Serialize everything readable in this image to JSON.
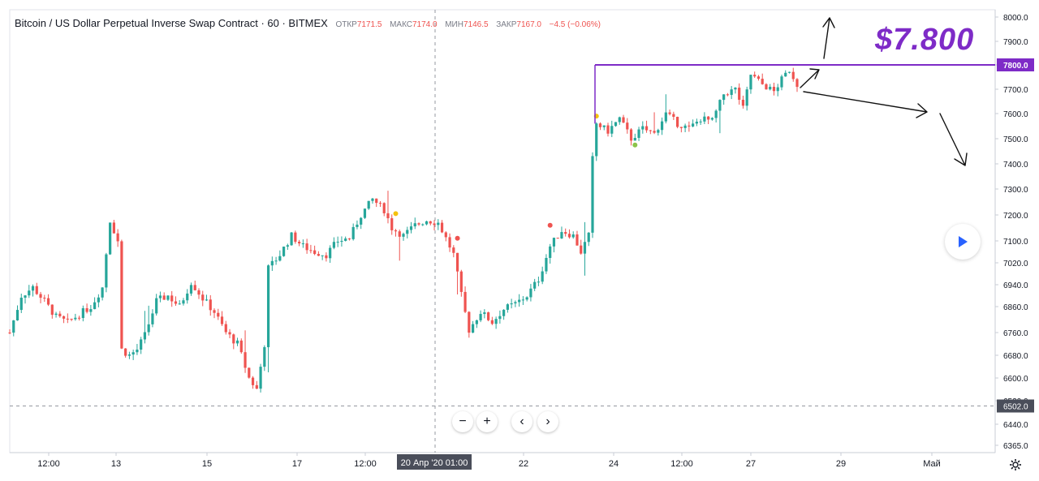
{
  "header": {
    "title": "Bitcoin / US Dollar Perpetual Inverse Swap Contract · 60 · BITMEX",
    "open_label": "ОТКР",
    "open_value": "7171.5",
    "high_label": "МАКС",
    "high_value": "7174.0",
    "low_label": "МИН",
    "low_value": "7146.5",
    "close_label": "ЗАКР",
    "close_value": "7167.0",
    "change": "−4.5 (−0.06%)"
  },
  "annotation": {
    "price_text": "$7.800",
    "color": "#7e2bc7"
  },
  "colors": {
    "up": "#26a69a",
    "down": "#ef5350",
    "resistance": "#7e2bc7",
    "axis_text": "#131722",
    "grid_line": "#d1d4dc"
  },
  "controls": {
    "zoom_out": "−",
    "zoom_in": "+",
    "scroll_left": "‹",
    "scroll_right": "›",
    "play_icon": "play-icon",
    "settings_icon": "gear-icon"
  },
  "chart_data": {
    "type": "candlestick",
    "title": "Bitcoin / US Dollar Perpetual Inverse Swap Contract · 60 · BITMEX",
    "interval": "60",
    "ylim": [
      6330,
      8020
    ],
    "y_ticks": [
      "8000.0",
      "7900.0",
      "7800.0",
      "7700.0",
      "7600.0",
      "7500.0",
      "7400.0",
      "7300.0",
      "7200.0",
      "7100.0",
      "7020.0",
      "6940.0",
      "6860.0",
      "6760.0",
      "6680.0",
      "6600.0",
      "6520.0",
      "6440.0",
      "6365.0"
    ],
    "x_ticks": [
      "12:00",
      "13",
      "15",
      "17",
      "12:00",
      "22",
      "24",
      "12:00",
      "27",
      "29",
      "Май"
    ],
    "crosshair": {
      "x_label": "20 Апр '20   01:00",
      "y_label": "6502.0",
      "y_value": 6502
    },
    "resistance_line": {
      "value": 7800,
      "label": "7800.0"
    },
    "price_path": [
      {
        "t": 0,
        "p": 6760
      },
      {
        "t": 3,
        "p": 6900
      },
      {
        "t": 6,
        "p": 6930
      },
      {
        "t": 9,
        "p": 6880
      },
      {
        "t": 12,
        "p": 6820
      },
      {
        "t": 15,
        "p": 6800
      },
      {
        "t": 18,
        "p": 6830
      },
      {
        "t": 21,
        "p": 6860
      },
      {
        "t": 24,
        "p": 6930
      },
      {
        "t": 26,
        "p": 7180
      },
      {
        "t": 27,
        "p": 7140
      },
      {
        "t": 28,
        "p": 7100
      },
      {
        "t": 29,
        "p": 6700
      },
      {
        "t": 31,
        "p": 6680
      },
      {
        "t": 33,
        "p": 6700
      },
      {
        "t": 35,
        "p": 6750
      },
      {
        "t": 38,
        "p": 6880
      },
      {
        "t": 41,
        "p": 6900
      },
      {
        "t": 44,
        "p": 6860
      },
      {
        "t": 47,
        "p": 6950
      },
      {
        "t": 50,
        "p": 6890
      },
      {
        "t": 53,
        "p": 6840
      },
      {
        "t": 56,
        "p": 6760
      },
      {
        "t": 59,
        "p": 6720
      },
      {
        "t": 62,
        "p": 6600
      },
      {
        "t": 64,
        "p": 6560
      },
      {
        "t": 66,
        "p": 6720
      },
      {
        "t": 67,
        "p": 7000
      },
      {
        "t": 70,
        "p": 7050
      },
      {
        "t": 73,
        "p": 7120
      },
      {
        "t": 76,
        "p": 7080
      },
      {
        "t": 79,
        "p": 7060
      },
      {
        "t": 82,
        "p": 7050
      },
      {
        "t": 85,
        "p": 7100
      },
      {
        "t": 88,
        "p": 7110
      },
      {
        "t": 91,
        "p": 7200
      },
      {
        "t": 94,
        "p": 7260
      },
      {
        "t": 97,
        "p": 7220
      },
      {
        "t": 99,
        "p": 7150
      },
      {
        "t": 102,
        "p": 7120
      },
      {
        "t": 105,
        "p": 7160
      },
      {
        "t": 108,
        "p": 7180
      },
      {
        "t": 111,
        "p": 7170
      },
      {
        "t": 113,
        "p": 7110
      },
      {
        "t": 115,
        "p": 7050
      },
      {
        "t": 117,
        "p": 6900
      },
      {
        "t": 119,
        "p": 6770
      },
      {
        "t": 122,
        "p": 6840
      },
      {
        "t": 125,
        "p": 6800
      },
      {
        "t": 128,
        "p": 6850
      },
      {
        "t": 131,
        "p": 6870
      },
      {
        "t": 134,
        "p": 6900
      },
      {
        "t": 137,
        "p": 6960
      },
      {
        "t": 140,
        "p": 7080
      },
      {
        "t": 143,
        "p": 7140
      },
      {
        "t": 146,
        "p": 7120
      },
      {
        "t": 148,
        "p": 7060
      },
      {
        "t": 150,
        "p": 7120
      },
      {
        "t": 151,
        "p": 7420
      },
      {
        "t": 152,
        "p": 7560
      },
      {
        "t": 155,
        "p": 7530
      },
      {
        "t": 158,
        "p": 7580
      },
      {
        "t": 161,
        "p": 7500
      },
      {
        "t": 164,
        "p": 7540
      },
      {
        "t": 167,
        "p": 7520
      },
      {
        "t": 170,
        "p": 7600
      },
      {
        "t": 173,
        "p": 7560
      },
      {
        "t": 176,
        "p": 7540
      },
      {
        "t": 179,
        "p": 7580
      },
      {
        "t": 182,
        "p": 7570
      },
      {
        "t": 185,
        "p": 7680
      },
      {
        "t": 188,
        "p": 7700
      },
      {
        "t": 190,
        "p": 7620
      },
      {
        "t": 192,
        "p": 7760
      },
      {
        "t": 195,
        "p": 7720
      },
      {
        "t": 198,
        "p": 7690
      },
      {
        "t": 200,
        "p": 7740
      },
      {
        "t": 202,
        "p": 7780
      },
      {
        "t": 204,
        "p": 7720
      }
    ],
    "markers": [
      {
        "t": 100,
        "p": 7205,
        "color": "#f4c20d"
      },
      {
        "t": 116,
        "p": 7110,
        "color": "#ef5350"
      },
      {
        "t": 140,
        "p": 7160,
        "color": "#ef5350"
      },
      {
        "t": 152,
        "p": 7590,
        "color": "#f4c20d"
      },
      {
        "t": 162,
        "p": 7475,
        "color": "#8bc34a"
      }
    ]
  }
}
